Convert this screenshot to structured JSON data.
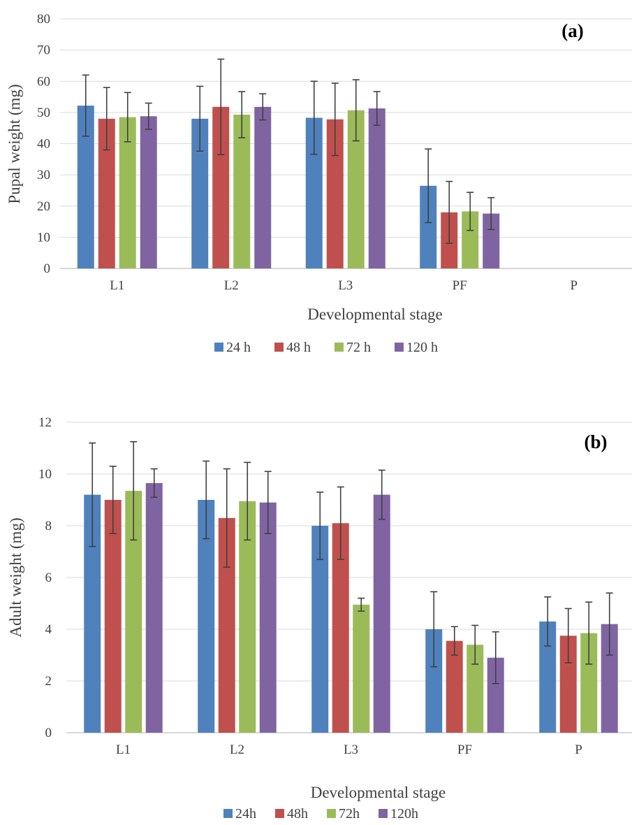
{
  "chart_data": [
    {
      "type": "bar",
      "panel_label": "(a)",
      "xlabel": "Developmental stage",
      "ylabel": "Pupal weight (mg)",
      "categories": [
        "L1",
        "L2",
        "L3",
        "PF",
        "P"
      ],
      "ylim": [
        0,
        80
      ],
      "yticks": [
        0,
        10,
        20,
        30,
        40,
        50,
        60,
        70,
        80
      ],
      "grid": true,
      "legend_position": "bottom",
      "series": [
        {
          "name": "24 h",
          "color": "#4F81BD",
          "values": [
            52.2,
            48.0,
            48.3,
            26.5,
            null
          ],
          "error": [
            9.8,
            10.4,
            11.7,
            11.8,
            null
          ]
        },
        {
          "name": "48 h",
          "color": "#C0504D",
          "values": [
            48.0,
            51.8,
            47.8,
            18.0,
            null
          ],
          "error": [
            10.0,
            15.3,
            11.6,
            9.9,
            null
          ]
        },
        {
          "name": "72 h",
          "color": "#9BBB59",
          "values": [
            48.5,
            49.3,
            50.7,
            18.3,
            null
          ],
          "error": [
            7.9,
            7.4,
            9.8,
            6.1,
            null
          ]
        },
        {
          "name": "120 h",
          "color": "#8064A2",
          "values": [
            48.8,
            51.8,
            51.3,
            17.6,
            null
          ],
          "error": [
            4.2,
            4.2,
            5.4,
            5.1,
            null
          ]
        }
      ]
    },
    {
      "type": "bar",
      "panel_label": "(b)",
      "xlabel": "Developmental stage",
      "ylabel": "Adult weight (mg)",
      "categories": [
        "L1",
        "L2",
        "L3",
        "PF",
        "P"
      ],
      "ylim": [
        0,
        12
      ],
      "yticks": [
        0,
        2,
        4,
        6,
        8,
        10,
        12
      ],
      "grid": true,
      "legend_position": "bottom",
      "series": [
        {
          "name": "24h",
          "color": "#4F81BD",
          "values": [
            9.2,
            9.0,
            8.0,
            4.0,
            4.3
          ],
          "error": [
            2.0,
            1.5,
            1.3,
            1.45,
            0.95
          ]
        },
        {
          "name": "48h",
          "color": "#C0504D",
          "values": [
            9.0,
            8.3,
            8.1,
            3.55,
            3.75
          ],
          "error": [
            1.3,
            1.9,
            1.4,
            0.55,
            1.05
          ]
        },
        {
          "name": "72h",
          "color": "#9BBB59",
          "values": [
            9.35,
            8.95,
            4.95,
            3.4,
            3.85
          ],
          "error": [
            1.9,
            1.5,
            0.25,
            0.75,
            1.2
          ]
        },
        {
          "name": "120h",
          "color": "#8064A2",
          "values": [
            9.65,
            8.9,
            9.2,
            2.9,
            4.2
          ],
          "error": [
            0.55,
            1.2,
            0.95,
            1.0,
            1.2
          ]
        }
      ]
    }
  ]
}
